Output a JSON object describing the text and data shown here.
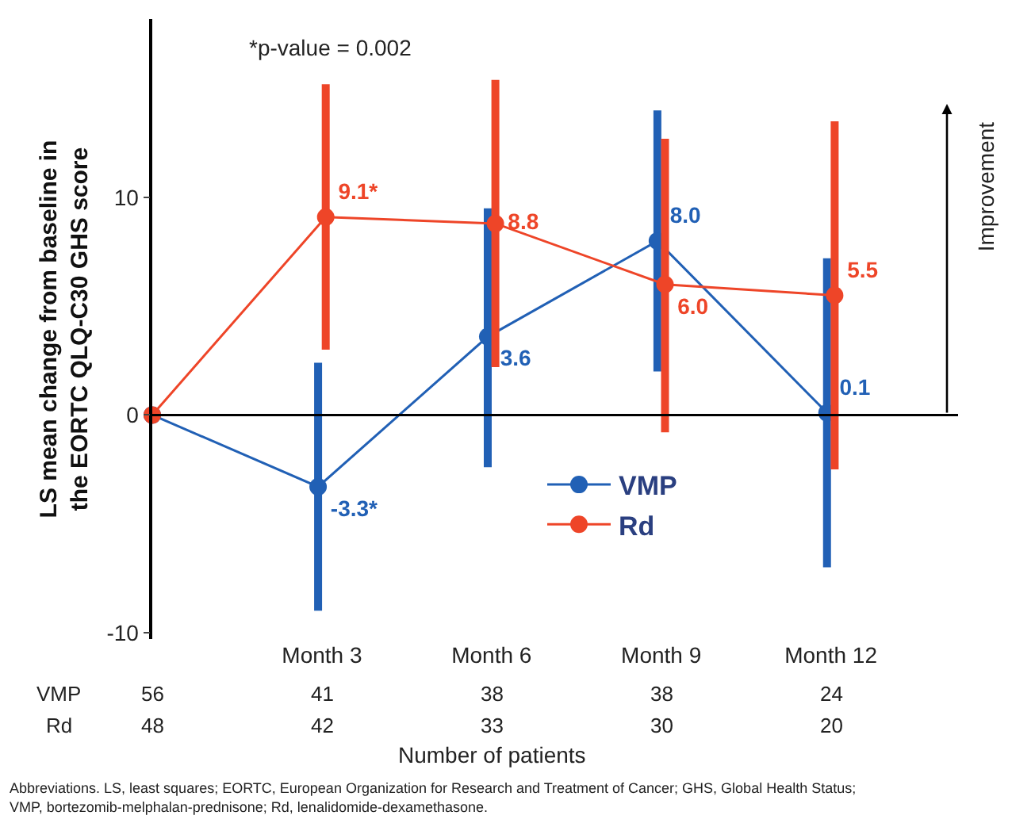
{
  "chart_data": {
    "type": "line",
    "ylabel": "LS mean change from baseline in the EORTC QLQ-C30 GHS score",
    "categories": [
      null,
      "Month 3",
      "Month 6",
      "Month 9",
      "Month 12"
    ],
    "series": [
      {
        "name": "VMP",
        "color": "#2160b5",
        "values": [
          0,
          -3.3,
          3.6,
          8.0,
          0.1
        ],
        "value_labels": [
          null,
          "-3.3*",
          "3.6",
          "8.0",
          "0.1"
        ],
        "errors": [
          null,
          [
            -9.0,
            2.4
          ],
          [
            -2.4,
            9.5
          ],
          [
            2.0,
            14.0
          ],
          [
            -7.0,
            7.2
          ]
        ]
      },
      {
        "name": "Rd",
        "color": "#ee4528",
        "values": [
          0,
          9.1,
          8.8,
          6.0,
          5.5
        ],
        "value_labels": [
          null,
          "9.1*",
          "8.8",
          "6.0",
          "5.5"
        ],
        "errors": [
          null,
          [
            3.0,
            15.2
          ],
          [
            2.2,
            15.4
          ],
          [
            -0.8,
            12.7
          ],
          [
            -2.5,
            13.5
          ]
        ]
      }
    ],
    "ylim": [
      -10.3,
      18.2
    ],
    "yticks": [
      -10,
      0,
      10
    ],
    "grid": false,
    "ref_lines": [
      {
        "axis": "y",
        "value": 0,
        "color": "#000000"
      }
    ],
    "legend": "bottom",
    "marker": "circle",
    "line_style": "solid",
    "annotations": [
      "*p-value = 0.002",
      "Improvement",
      "VMP",
      "56",
      "41",
      "38",
      "38",
      "24",
      "Rd",
      "48",
      "42",
      "33",
      "30",
      "20",
      "Number of patients",
      "Abbreviations. LS, least squares; EORTC, European Organization for Research and Treatment of Cancer; GHS, Global Health Status;",
      "VMP, bortezomib-melphalan-prednisone; Rd, lenalidomide-dexamethasone."
    ]
  }
}
